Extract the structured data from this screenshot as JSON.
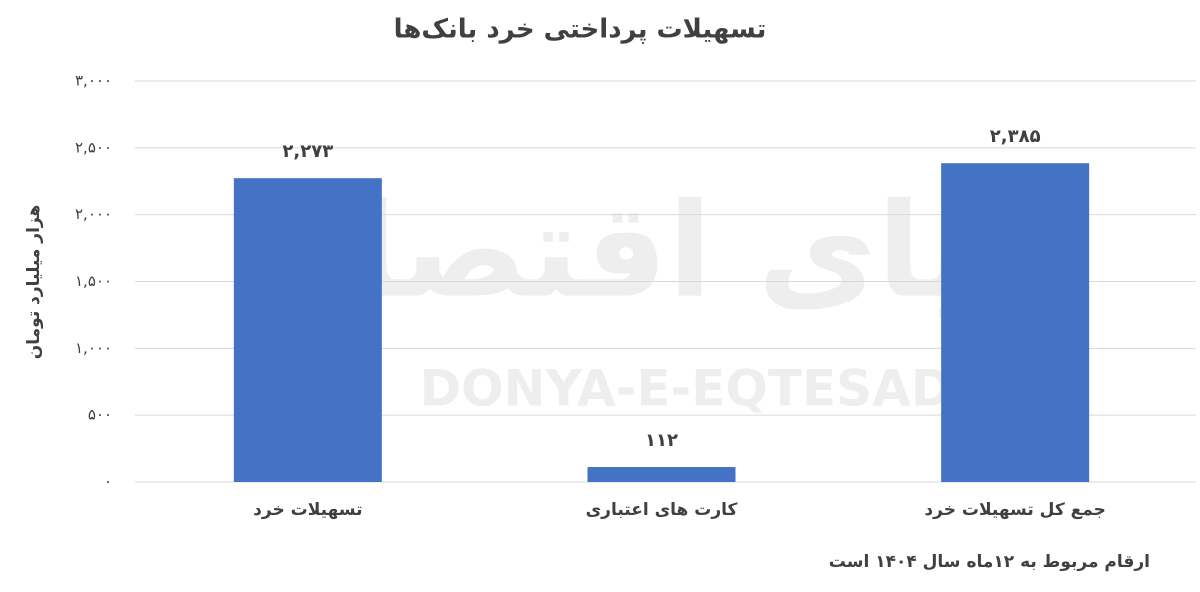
{
  "chart_data": {
    "type": "bar",
    "title": "تسهیلات پرداختی خرد بانک‌ها",
    "y_label": "هزار میلیارد تومان",
    "categories": [
      "تسهیلات خرد",
      "کارت های اعتباری",
      "جمع کل تسهیلات خرد"
    ],
    "values": [
      2273,
      112,
      2385
    ],
    "value_labels": [
      "۲,۲۷۳",
      "۱۱۲",
      "۲,۳۸۵"
    ],
    "color": "#4472c4",
    "ylim": [
      0,
      3000
    ],
    "yticks": [
      {
        "value": 0,
        "label": "۰"
      },
      {
        "value": 500,
        "label": "۵۰۰"
      },
      {
        "value": 1000,
        "label": "۱,۰۰۰"
      },
      {
        "value": 1500,
        "label": "۱,۵۰۰"
      },
      {
        "value": 2000,
        "label": "۲,۰۰۰"
      },
      {
        "value": 2500,
        "label": "۲,۵۰۰"
      },
      {
        "value": 3000,
        "label": "۳,۰۰۰"
      }
    ],
    "grid": true,
    "note": "ارقام مربوط به ۱۲ماه سال ۱۴۰۴ است",
    "watermark": [
      "دنیای اقتصاد",
      "DONYA-E-EQTESAD"
    ]
  }
}
